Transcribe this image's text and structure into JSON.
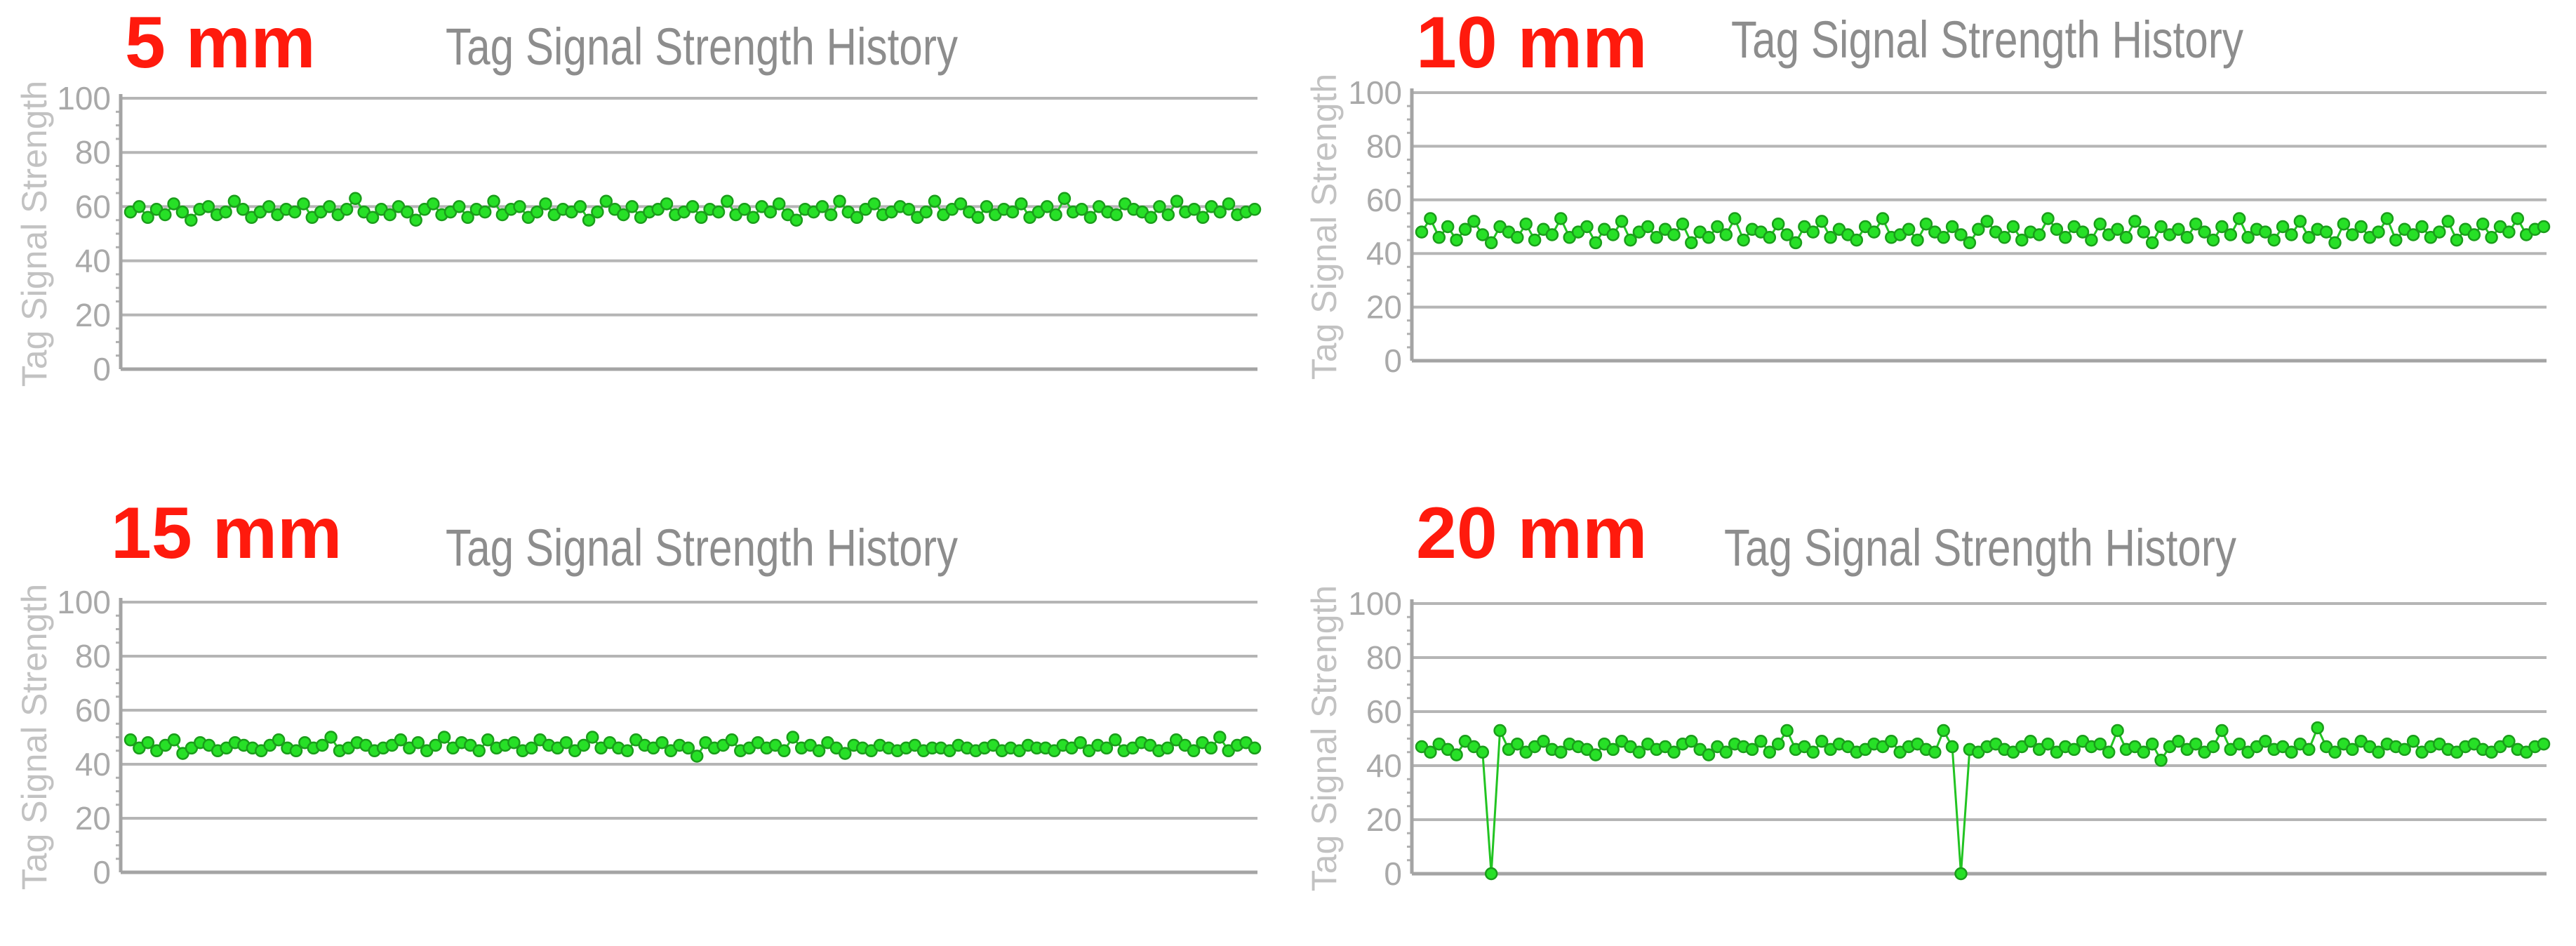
{
  "colors": {
    "label": "#ff1a0d",
    "series": "#27e027",
    "point_stroke": "#1a9d1a",
    "title": "#8d8d8d",
    "grid": "#b5b5b5"
  },
  "chart_data": [
    {
      "type": "line",
      "panel_label": "5 mm",
      "title": "Tag Signal Strength History",
      "ylabel": "Tag Signal Strength",
      "xlabel": "",
      "ylim": [
        0,
        100
      ],
      "yticks": [
        "0",
        "20",
        "40",
        "60",
        "80",
        "100"
      ],
      "grid": true,
      "series": [
        {
          "values": [
            58,
            60,
            56,
            59,
            57,
            61,
            58,
            55,
            59,
            60,
            57,
            58,
            62,
            59,
            56,
            58,
            60,
            57,
            59,
            58,
            61,
            56,
            58,
            60,
            57,
            59,
            63,
            58,
            56,
            59,
            57,
            60,
            58,
            55,
            59,
            61,
            57,
            58,
            60,
            56,
            59,
            58,
            62,
            57,
            59,
            60,
            56,
            58,
            61,
            57,
            59,
            58,
            60,
            55,
            58,
            62,
            59,
            57,
            60,
            56,
            58,
            59,
            61,
            57,
            58,
            60,
            56,
            59,
            58,
            62,
            57,
            59,
            56,
            60,
            58,
            61,
            57,
            55,
            59,
            58,
            60,
            57,
            62,
            58,
            56,
            59,
            61,
            57,
            58,
            60,
            59,
            56,
            58,
            62,
            57,
            59,
            61,
            58,
            56,
            60,
            57,
            59,
            58,
            61,
            56,
            58,
            60,
            57,
            63,
            58,
            59,
            56,
            60,
            58,
            57,
            61,
            59,
            58,
            56,
            60,
            57,
            62,
            58,
            59,
            56,
            60,
            58,
            61,
            57,
            58,
            59
          ]
        }
      ]
    },
    {
      "type": "line",
      "panel_label": "10 mm",
      "title": "Tag Signal Strength History",
      "ylabel": "Tag Signal Strength",
      "xlabel": "",
      "ylim": [
        0,
        100
      ],
      "yticks": [
        "0",
        "20",
        "40",
        "60",
        "80",
        "100"
      ],
      "grid": true,
      "series": [
        {
          "values": [
            48,
            53,
            46,
            50,
            45,
            49,
            52,
            47,
            44,
            50,
            48,
            46,
            51,
            45,
            49,
            47,
            53,
            46,
            48,
            50,
            44,
            49,
            47,
            52,
            45,
            48,
            50,
            46,
            49,
            47,
            51,
            44,
            48,
            46,
            50,
            47,
            53,
            45,
            49,
            48,
            46,
            51,
            47,
            44,
            50,
            48,
            52,
            46,
            49,
            47,
            45,
            50,
            48,
            53,
            46,
            47,
            49,
            45,
            51,
            48,
            46,
            50,
            47,
            44,
            49,
            52,
            48,
            46,
            50,
            45,
            48,
            47,
            53,
            49,
            46,
            50,
            48,
            45,
            51,
            47,
            49,
            46,
            52,
            48,
            44,
            50,
            47,
            49,
            46,
            51,
            48,
            45,
            50,
            47,
            53,
            46,
            49,
            48,
            45,
            50,
            47,
            52,
            46,
            49,
            48,
            44,
            51,
            47,
            50,
            46,
            48,
            53,
            45,
            49,
            47,
            50,
            46,
            48,
            52,
            45,
            49,
            47,
            51,
            46,
            50,
            48,
            53,
            47,
            49,
            50
          ]
        }
      ]
    },
    {
      "type": "line",
      "panel_label": "15 mm",
      "title": "Tag Signal Strength History",
      "ylabel": "Tag Signal Strength",
      "xlabel": "",
      "ylim": [
        0,
        100
      ],
      "yticks": [
        "0",
        "20",
        "40",
        "60",
        "80",
        "100"
      ],
      "grid": true,
      "series": [
        {
          "values": [
            49,
            46,
            48,
            45,
            47,
            49,
            44,
            46,
            48,
            47,
            45,
            46,
            48,
            47,
            46,
            45,
            47,
            49,
            46,
            45,
            48,
            46,
            47,
            50,
            45,
            46,
            48,
            47,
            45,
            46,
            47,
            49,
            46,
            48,
            45,
            47,
            50,
            46,
            48,
            47,
            45,
            49,
            46,
            47,
            48,
            45,
            46,
            49,
            47,
            46,
            48,
            45,
            47,
            50,
            46,
            48,
            46,
            45,
            49,
            47,
            46,
            48,
            45,
            47,
            46,
            43,
            48,
            46,
            47,
            49,
            45,
            46,
            48,
            46,
            47,
            45,
            50,
            46,
            47,
            45,
            48,
            46,
            44,
            47,
            46,
            45,
            47,
            46,
            45,
            46,
            47,
            45,
            46,
            46,
            45,
            47,
            46,
            45,
            46,
            47,
            45,
            46,
            45,
            47,
            46,
            46,
            45,
            47,
            46,
            48,
            45,
            47,
            46,
            49,
            45,
            46,
            48,
            47,
            45,
            46,
            49,
            47,
            45,
            48,
            46,
            50,
            45,
            47,
            48,
            46
          ]
        }
      ]
    },
    {
      "type": "line",
      "panel_label": "20 mm",
      "title": "Tag Signal Strength History",
      "ylabel": "Tag Signal Strength",
      "xlabel": "",
      "ylim": [
        0,
        100
      ],
      "yticks": [
        "0",
        "20",
        "40",
        "60",
        "80",
        "100"
      ],
      "grid": true,
      "series": [
        {
          "values": [
            47,
            45,
            48,
            46,
            44,
            49,
            47,
            45,
            0,
            53,
            46,
            48,
            45,
            47,
            49,
            46,
            45,
            48,
            47,
            46,
            44,
            48,
            46,
            49,
            47,
            45,
            48,
            46,
            47,
            45,
            48,
            49,
            46,
            44,
            47,
            45,
            48,
            47,
            46,
            49,
            45,
            48,
            53,
            46,
            47,
            45,
            49,
            46,
            48,
            47,
            45,
            46,
            48,
            47,
            49,
            45,
            47,
            48,
            46,
            45,
            53,
            47,
            0,
            46,
            45,
            47,
            48,
            46,
            45,
            47,
            49,
            46,
            48,
            45,
            47,
            46,
            49,
            47,
            48,
            45,
            53,
            46,
            47,
            45,
            48,
            42,
            47,
            49,
            46,
            48,
            45,
            47,
            53,
            46,
            48,
            45,
            47,
            49,
            46,
            47,
            45,
            48,
            46,
            54,
            47,
            45,
            48,
            46,
            49,
            47,
            45,
            48,
            47,
            46,
            49,
            45,
            47,
            48,
            46,
            45,
            47,
            48,
            46,
            45,
            47,
            49,
            46,
            45,
            47,
            48
          ]
        }
      ]
    }
  ]
}
